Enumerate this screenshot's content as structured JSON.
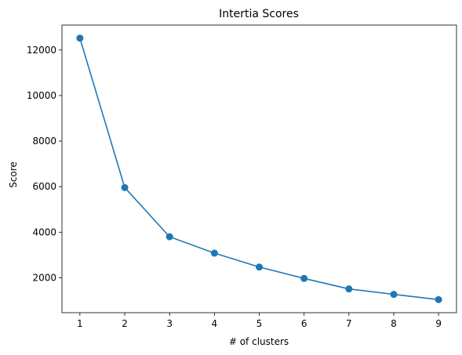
{
  "chart_data": {
    "type": "line",
    "title": "Intertia Scores",
    "xlabel": "# of clusters",
    "ylabel": "Score",
    "x": [
      1,
      2,
      3,
      4,
      5,
      6,
      7,
      8,
      9
    ],
    "series": [
      {
        "values": [
          12520,
          5960,
          3800,
          3080,
          2470,
          1970,
          1510,
          1270,
          1040
        ],
        "color": "#1f77b4",
        "marker": "circle"
      }
    ],
    "xticks": [
      1,
      2,
      3,
      4,
      5,
      6,
      7,
      8,
      9
    ],
    "yticks": [
      2000,
      4000,
      6000,
      8000,
      10000,
      12000
    ],
    "xlim": [
      0.6,
      9.4
    ],
    "ylim": [
      466,
      13094
    ],
    "grid": false,
    "legend": "none"
  }
}
